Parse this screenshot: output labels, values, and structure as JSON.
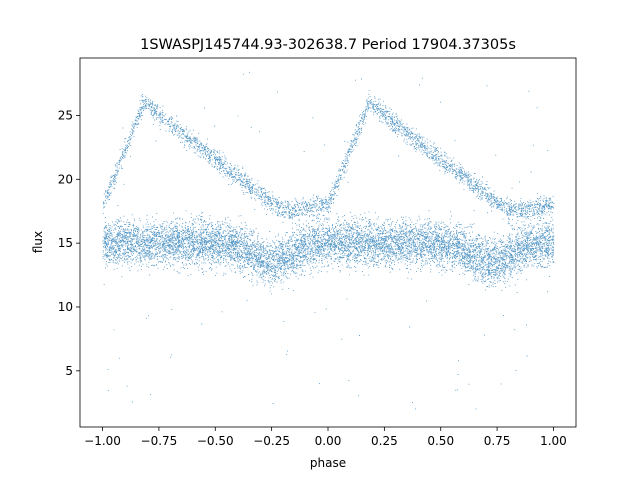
{
  "chart_data": {
    "type": "scatter",
    "title": "1SWASPJ145744.93-302638.7 Period 17904.37305s",
    "xlabel": "phase",
    "ylabel": "flux",
    "xlim": [
      -1.1,
      1.1
    ],
    "ylim": [
      0.6,
      29.5
    ],
    "xticks": [
      -1.0,
      -0.75,
      -0.5,
      -0.25,
      0.0,
      0.25,
      0.5,
      0.75,
      1.0
    ],
    "xtick_labels": [
      "−1.00",
      "−0.75",
      "−0.50",
      "−0.25",
      "0.00",
      "0.25",
      "0.50",
      "0.75",
      "1.00"
    ],
    "yticks": [
      5,
      10,
      15,
      20,
      25
    ],
    "ytick_labels": [
      "5",
      "10",
      "15",
      "20",
      "25"
    ],
    "grid": false,
    "marker_color": "#1f77b4",
    "series": [
      {
        "name": "",
        "description": "dense phase-folded light curve, x range -1.0 to 1.0",
        "baseline_flux": 15,
        "baseline_spread": [
          11.5,
          18.5
        ],
        "secondary_branch": [
          {
            "phase": -1.0,
            "flux": 18
          },
          {
            "phase": -0.82,
            "flux": 26
          },
          {
            "phase": -0.5,
            "flux": 21.5
          },
          {
            "phase": -0.2,
            "flux": 17.5
          },
          {
            "phase": 0.0,
            "flux": 18
          },
          {
            "phase": 0.18,
            "flux": 26
          },
          {
            "phase": 0.5,
            "flux": 21.5
          },
          {
            "phase": 0.8,
            "flux": 17.5
          },
          {
            "phase": 1.0,
            "flux": 18
          }
        ],
        "minima_dips": [
          {
            "phase": -0.25,
            "flux": 12.5
          },
          {
            "phase": 0.72,
            "flux": 12.5
          }
        ],
        "outlier_flux_range": [
          2,
          28.5
        ]
      }
    ]
  }
}
